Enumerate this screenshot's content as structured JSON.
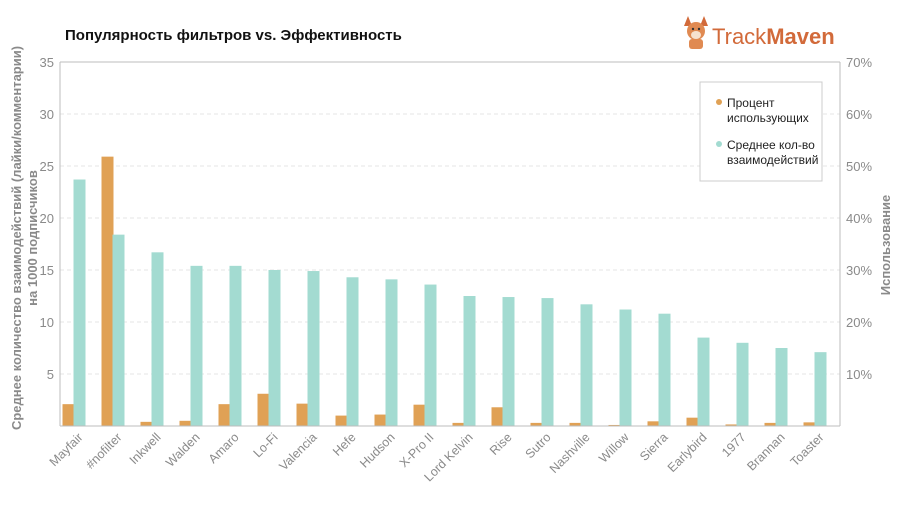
{
  "brand": {
    "name_part1": "Track",
    "name_part2": "Maven",
    "logo_icon": "corgi-dog-icon"
  },
  "chart_data": {
    "type": "bar",
    "title": "Популярность фильтров vs. Эффективность",
    "categories": [
      "Mayfair",
      "#nofilter",
      "Inkwell",
      "Walden",
      "Amaro",
      "Lo-Fi",
      "Valencia",
      "Hefe",
      "Hudson",
      "X-Pro II",
      "Lord Kelvin",
      "Rise",
      "Sutro",
      "Nashville",
      "Willow",
      "Sierra",
      "Earlybird",
      "1977",
      "Brannan",
      "Toaster"
    ],
    "series": [
      {
        "name": "Процент использующих",
        "axis": "right",
        "color": "#e0a155",
        "values": [
          4.2,
          51.8,
          0.8,
          1.0,
          4.2,
          6.2,
          4.3,
          2.0,
          2.2,
          4.1,
          0.6,
          3.6,
          0.6,
          0.6,
          0.2,
          0.9,
          1.6,
          0.3,
          0.6,
          0.7
        ]
      },
      {
        "name": "Среднее кол-во взаимодействий",
        "axis": "left",
        "color": "#a3dbd1",
        "values": [
          23.7,
          18.4,
          16.7,
          15.4,
          15.4,
          15.0,
          14.9,
          14.3,
          14.1,
          13.6,
          12.5,
          12.4,
          12.3,
          11.7,
          11.2,
          10.8,
          8.5,
          8.0,
          7.5,
          7.1
        ]
      }
    ],
    "y_left": {
      "label_line1": "Среднее количество взаимодействий (лайки/комментарии)",
      "label_line2": "на 1000 подписчиков",
      "min": 0,
      "max": 35,
      "ticks": [
        5,
        10,
        15,
        20,
        25,
        30,
        35
      ]
    },
    "y_right": {
      "label": "Использование",
      "min": 0,
      "max": 70,
      "ticks": [
        10,
        20,
        30,
        40,
        50,
        60,
        70
      ],
      "tick_labels": [
        "10%",
        "20%",
        "30%",
        "40%",
        "50%",
        "60%",
        "70%"
      ]
    },
    "grid": true,
    "legend_position": "top-right",
    "legend": [
      {
        "line1": "Процент",
        "line2": "использующих",
        "color": "#e0a155"
      },
      {
        "line1": "Среднее кол-во",
        "line2": "взаимодействий",
        "color": "#a3dbd1"
      }
    ]
  }
}
